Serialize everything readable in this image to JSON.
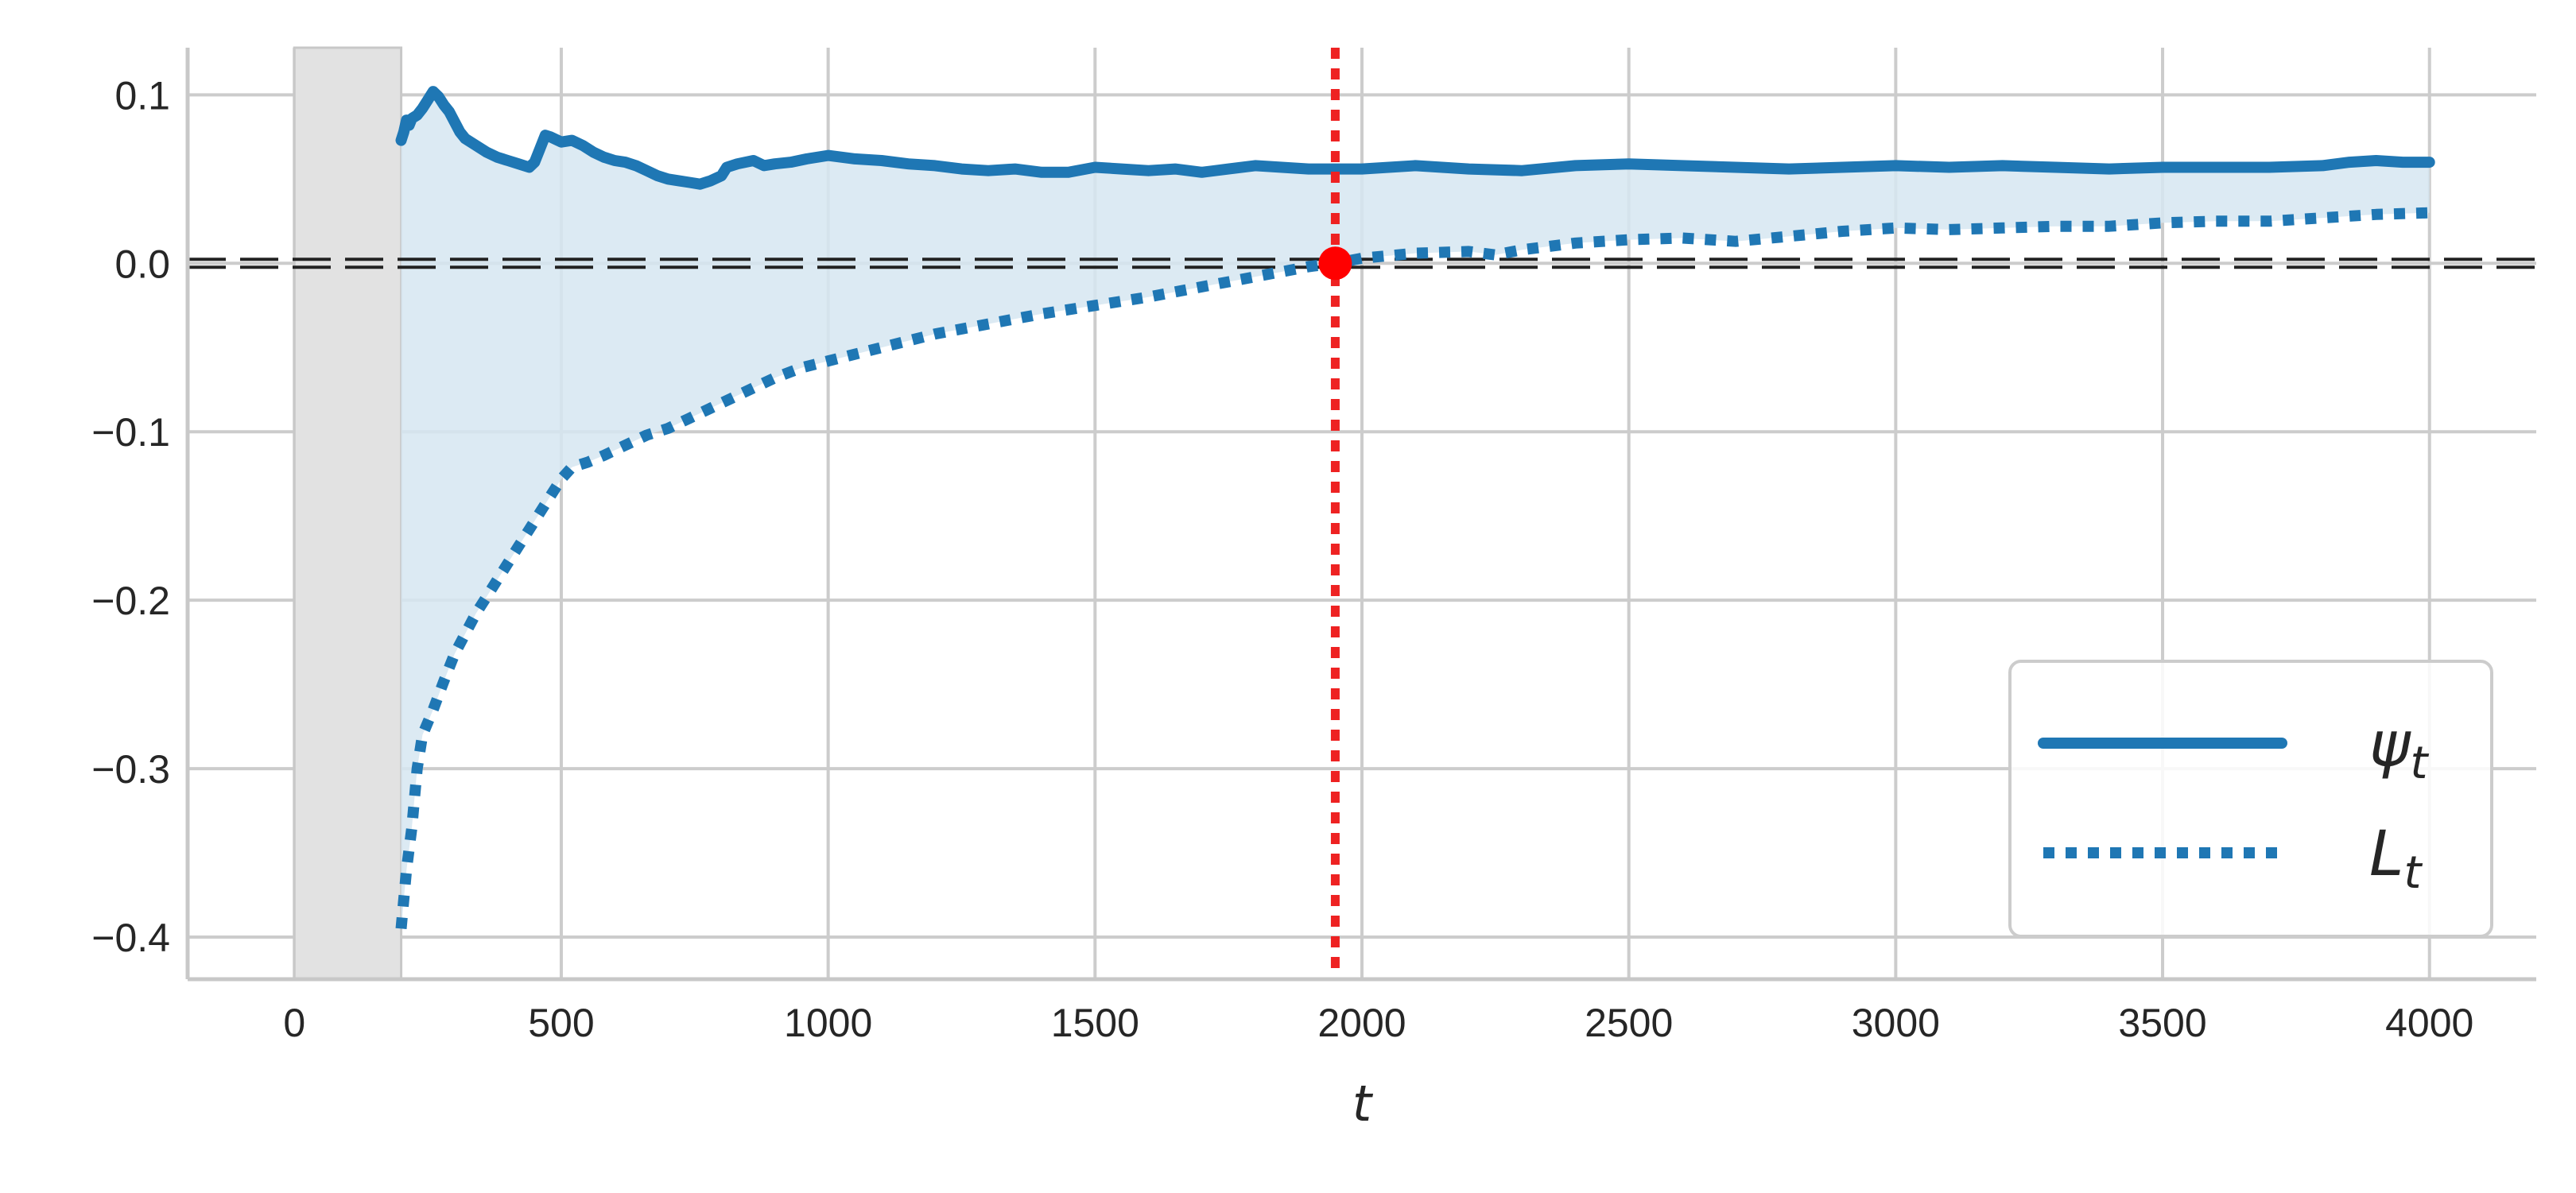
{
  "chart_data": {
    "type": "line",
    "title": "",
    "xlabel": "t",
    "ylabel": "",
    "xlim": [
      -200,
      4200
    ],
    "ylim": [
      -0.425,
      0.128
    ],
    "xticks": [
      0,
      500,
      1000,
      1500,
      2000,
      2500,
      3000,
      3500,
      4000
    ],
    "xtick_labels": [
      "0",
      "500",
      "1000",
      "1500",
      "2000",
      "2500",
      "3000",
      "3500",
      "4000"
    ],
    "yticks": [
      -0.4,
      -0.3,
      -0.2,
      -0.1,
      0.0,
      0.1
    ],
    "ytick_labels": [
      "−0.4",
      "−0.3",
      "−0.2",
      "−0.1",
      "0.0",
      "0.1"
    ],
    "grid": true,
    "legend_position": "lower-right",
    "colors": {
      "series": "#1f77b4",
      "fill": "#d6e6f1",
      "burn_in": "#e2e2e2",
      "marker": "#ff0000",
      "vline": "#ee2222",
      "zero_line": "#222222",
      "grid": "#cccccc"
    },
    "burn_in_region": [
      0,
      200
    ],
    "zero_line": 0.0,
    "vertical_line_x": 1950,
    "crossing_point": {
      "x": 1950,
      "y": 0.0
    },
    "series": [
      {
        "name": "ψ",
        "name_subscript": "t",
        "style": "solid",
        "points": [
          [
            200,
            0.073
          ],
          [
            205,
            0.078
          ],
          [
            210,
            0.085
          ],
          [
            215,
            0.082
          ],
          [
            220,
            0.086
          ],
          [
            230,
            0.088
          ],
          [
            240,
            0.092
          ],
          [
            250,
            0.097
          ],
          [
            260,
            0.102
          ],
          [
            270,
            0.099
          ],
          [
            280,
            0.094
          ],
          [
            290,
            0.09
          ],
          [
            300,
            0.084
          ],
          [
            310,
            0.078
          ],
          [
            320,
            0.074
          ],
          [
            340,
            0.07
          ],
          [
            360,
            0.066
          ],
          [
            380,
            0.063
          ],
          [
            400,
            0.061
          ],
          [
            420,
            0.059
          ],
          [
            440,
            0.057
          ],
          [
            450,
            0.06
          ],
          [
            460,
            0.068
          ],
          [
            470,
            0.076
          ],
          [
            480,
            0.075
          ],
          [
            500,
            0.072
          ],
          [
            520,
            0.073
          ],
          [
            540,
            0.07
          ],
          [
            560,
            0.066
          ],
          [
            580,
            0.063
          ],
          [
            600,
            0.061
          ],
          [
            620,
            0.06
          ],
          [
            640,
            0.058
          ],
          [
            660,
            0.055
          ],
          [
            680,
            0.052
          ],
          [
            700,
            0.05
          ],
          [
            720,
            0.049
          ],
          [
            740,
            0.048
          ],
          [
            760,
            0.047
          ],
          [
            780,
            0.049
          ],
          [
            800,
            0.052
          ],
          [
            810,
            0.057
          ],
          [
            830,
            0.059
          ],
          [
            860,
            0.061
          ],
          [
            880,
            0.058
          ],
          [
            900,
            0.059
          ],
          [
            930,
            0.06
          ],
          [
            960,
            0.062
          ],
          [
            1000,
            0.064
          ],
          [
            1050,
            0.062
          ],
          [
            1100,
            0.061
          ],
          [
            1150,
            0.059
          ],
          [
            1200,
            0.058
          ],
          [
            1250,
            0.056
          ],
          [
            1300,
            0.055
          ],
          [
            1350,
            0.056
          ],
          [
            1400,
            0.054
          ],
          [
            1450,
            0.054
          ],
          [
            1500,
            0.057
          ],
          [
            1550,
            0.056
          ],
          [
            1600,
            0.055
          ],
          [
            1650,
            0.056
          ],
          [
            1700,
            0.054
          ],
          [
            1750,
            0.056
          ],
          [
            1800,
            0.058
          ],
          [
            1850,
            0.057
          ],
          [
            1900,
            0.056
          ],
          [
            1950,
            0.056
          ],
          [
            2000,
            0.056
          ],
          [
            2100,
            0.058
          ],
          [
            2200,
            0.056
          ],
          [
            2300,
            0.055
          ],
          [
            2400,
            0.058
          ],
          [
            2500,
            0.059
          ],
          [
            2600,
            0.058
          ],
          [
            2700,
            0.057
          ],
          [
            2800,
            0.056
          ],
          [
            2900,
            0.057
          ],
          [
            3000,
            0.058
          ],
          [
            3100,
            0.057
          ],
          [
            3200,
            0.058
          ],
          [
            3300,
            0.057
          ],
          [
            3400,
            0.056
          ],
          [
            3500,
            0.057
          ],
          [
            3600,
            0.057
          ],
          [
            3700,
            0.057
          ],
          [
            3800,
            0.058
          ],
          [
            3850,
            0.06
          ],
          [
            3900,
            0.061
          ],
          [
            3950,
            0.06
          ],
          [
            4000,
            0.06
          ]
        ]
      },
      {
        "name": "L",
        "name_subscript": "t",
        "style": "dotted",
        "points": [
          [
            200,
            -0.395
          ],
          [
            210,
            -0.36
          ],
          [
            220,
            -0.335
          ],
          [
            230,
            -0.3
          ],
          [
            240,
            -0.28
          ],
          [
            260,
            -0.265
          ],
          [
            280,
            -0.248
          ],
          [
            300,
            -0.232
          ],
          [
            320,
            -0.22
          ],
          [
            340,
            -0.208
          ],
          [
            360,
            -0.198
          ],
          [
            380,
            -0.188
          ],
          [
            400,
            -0.178
          ],
          [
            420,
            -0.168
          ],
          [
            440,
            -0.158
          ],
          [
            460,
            -0.148
          ],
          [
            480,
            -0.138
          ],
          [
            500,
            -0.128
          ],
          [
            520,
            -0.121
          ],
          [
            550,
            -0.118
          ],
          [
            580,
            -0.114
          ],
          [
            620,
            -0.108
          ],
          [
            660,
            -0.102
          ],
          [
            700,
            -0.098
          ],
          [
            740,
            -0.092
          ],
          [
            780,
            -0.086
          ],
          [
            820,
            -0.08
          ],
          [
            860,
            -0.074
          ],
          [
            900,
            -0.068
          ],
          [
            950,
            -0.062
          ],
          [
            1000,
            -0.058
          ],
          [
            1050,
            -0.054
          ],
          [
            1100,
            -0.05
          ],
          [
            1150,
            -0.046
          ],
          [
            1200,
            -0.042
          ],
          [
            1300,
            -0.036
          ],
          [
            1400,
            -0.03
          ],
          [
            1500,
            -0.025
          ],
          [
            1600,
            -0.02
          ],
          [
            1700,
            -0.014
          ],
          [
            1800,
            -0.008
          ],
          [
            1900,
            -0.002
          ],
          [
            1950,
            0.0
          ],
          [
            2000,
            0.003
          ],
          [
            2100,
            0.006
          ],
          [
            2200,
            0.007
          ],
          [
            2250,
            0.005
          ],
          [
            2300,
            0.008
          ],
          [
            2400,
            0.012
          ],
          [
            2500,
            0.014
          ],
          [
            2600,
            0.015
          ],
          [
            2700,
            0.013
          ],
          [
            2800,
            0.016
          ],
          [
            2900,
            0.019
          ],
          [
            3000,
            0.021
          ],
          [
            3100,
            0.02
          ],
          [
            3200,
            0.021
          ],
          [
            3300,
            0.022
          ],
          [
            3400,
            0.022
          ],
          [
            3500,
            0.024
          ],
          [
            3600,
            0.025
          ],
          [
            3700,
            0.025
          ],
          [
            3800,
            0.027
          ],
          [
            3900,
            0.029
          ],
          [
            4000,
            0.03
          ]
        ]
      }
    ]
  }
}
